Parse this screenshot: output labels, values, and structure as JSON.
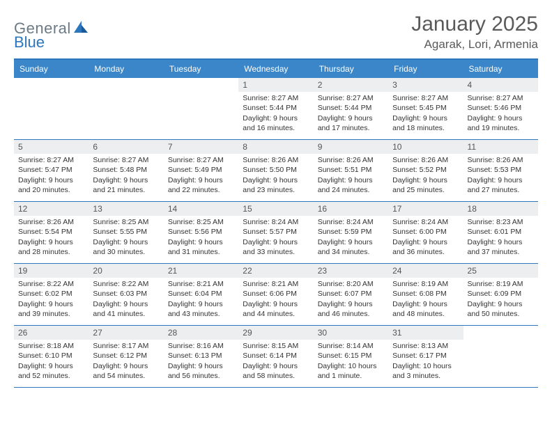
{
  "logo": {
    "word1": "General",
    "word2": "Blue"
  },
  "title": "January 2025",
  "location": "Agarak, Lori, Armenia",
  "colors": {
    "header_bg": "#3b86c8",
    "border": "#2b76bd",
    "daynum_bg": "#eceeef",
    "text": "#333333",
    "logo_gray": "#6b7a85",
    "logo_blue": "#2b76bd"
  },
  "weekdays": [
    "Sunday",
    "Monday",
    "Tuesday",
    "Wednesday",
    "Thursday",
    "Friday",
    "Saturday"
  ],
  "weeks": [
    [
      {
        "n": "",
        "sr": "",
        "ss": "",
        "dl1": "",
        "dl2": ""
      },
      {
        "n": "",
        "sr": "",
        "ss": "",
        "dl1": "",
        "dl2": ""
      },
      {
        "n": "",
        "sr": "",
        "ss": "",
        "dl1": "",
        "dl2": ""
      },
      {
        "n": "1",
        "sr": "Sunrise: 8:27 AM",
        "ss": "Sunset: 5:44 PM",
        "dl1": "Daylight: 9 hours",
        "dl2": "and 16 minutes."
      },
      {
        "n": "2",
        "sr": "Sunrise: 8:27 AM",
        "ss": "Sunset: 5:44 PM",
        "dl1": "Daylight: 9 hours",
        "dl2": "and 17 minutes."
      },
      {
        "n": "3",
        "sr": "Sunrise: 8:27 AM",
        "ss": "Sunset: 5:45 PM",
        "dl1": "Daylight: 9 hours",
        "dl2": "and 18 minutes."
      },
      {
        "n": "4",
        "sr": "Sunrise: 8:27 AM",
        "ss": "Sunset: 5:46 PM",
        "dl1": "Daylight: 9 hours",
        "dl2": "and 19 minutes."
      }
    ],
    [
      {
        "n": "5",
        "sr": "Sunrise: 8:27 AM",
        "ss": "Sunset: 5:47 PM",
        "dl1": "Daylight: 9 hours",
        "dl2": "and 20 minutes."
      },
      {
        "n": "6",
        "sr": "Sunrise: 8:27 AM",
        "ss": "Sunset: 5:48 PM",
        "dl1": "Daylight: 9 hours",
        "dl2": "and 21 minutes."
      },
      {
        "n": "7",
        "sr": "Sunrise: 8:27 AM",
        "ss": "Sunset: 5:49 PM",
        "dl1": "Daylight: 9 hours",
        "dl2": "and 22 minutes."
      },
      {
        "n": "8",
        "sr": "Sunrise: 8:26 AM",
        "ss": "Sunset: 5:50 PM",
        "dl1": "Daylight: 9 hours",
        "dl2": "and 23 minutes."
      },
      {
        "n": "9",
        "sr": "Sunrise: 8:26 AM",
        "ss": "Sunset: 5:51 PM",
        "dl1": "Daylight: 9 hours",
        "dl2": "and 24 minutes."
      },
      {
        "n": "10",
        "sr": "Sunrise: 8:26 AM",
        "ss": "Sunset: 5:52 PM",
        "dl1": "Daylight: 9 hours",
        "dl2": "and 25 minutes."
      },
      {
        "n": "11",
        "sr": "Sunrise: 8:26 AM",
        "ss": "Sunset: 5:53 PM",
        "dl1": "Daylight: 9 hours",
        "dl2": "and 27 minutes."
      }
    ],
    [
      {
        "n": "12",
        "sr": "Sunrise: 8:26 AM",
        "ss": "Sunset: 5:54 PM",
        "dl1": "Daylight: 9 hours",
        "dl2": "and 28 minutes."
      },
      {
        "n": "13",
        "sr": "Sunrise: 8:25 AM",
        "ss": "Sunset: 5:55 PM",
        "dl1": "Daylight: 9 hours",
        "dl2": "and 30 minutes."
      },
      {
        "n": "14",
        "sr": "Sunrise: 8:25 AM",
        "ss": "Sunset: 5:56 PM",
        "dl1": "Daylight: 9 hours",
        "dl2": "and 31 minutes."
      },
      {
        "n": "15",
        "sr": "Sunrise: 8:24 AM",
        "ss": "Sunset: 5:57 PM",
        "dl1": "Daylight: 9 hours",
        "dl2": "and 33 minutes."
      },
      {
        "n": "16",
        "sr": "Sunrise: 8:24 AM",
        "ss": "Sunset: 5:59 PM",
        "dl1": "Daylight: 9 hours",
        "dl2": "and 34 minutes."
      },
      {
        "n": "17",
        "sr": "Sunrise: 8:24 AM",
        "ss": "Sunset: 6:00 PM",
        "dl1": "Daylight: 9 hours",
        "dl2": "and 36 minutes."
      },
      {
        "n": "18",
        "sr": "Sunrise: 8:23 AM",
        "ss": "Sunset: 6:01 PM",
        "dl1": "Daylight: 9 hours",
        "dl2": "and 37 minutes."
      }
    ],
    [
      {
        "n": "19",
        "sr": "Sunrise: 8:22 AM",
        "ss": "Sunset: 6:02 PM",
        "dl1": "Daylight: 9 hours",
        "dl2": "and 39 minutes."
      },
      {
        "n": "20",
        "sr": "Sunrise: 8:22 AM",
        "ss": "Sunset: 6:03 PM",
        "dl1": "Daylight: 9 hours",
        "dl2": "and 41 minutes."
      },
      {
        "n": "21",
        "sr": "Sunrise: 8:21 AM",
        "ss": "Sunset: 6:04 PM",
        "dl1": "Daylight: 9 hours",
        "dl2": "and 43 minutes."
      },
      {
        "n": "22",
        "sr": "Sunrise: 8:21 AM",
        "ss": "Sunset: 6:06 PM",
        "dl1": "Daylight: 9 hours",
        "dl2": "and 44 minutes."
      },
      {
        "n": "23",
        "sr": "Sunrise: 8:20 AM",
        "ss": "Sunset: 6:07 PM",
        "dl1": "Daylight: 9 hours",
        "dl2": "and 46 minutes."
      },
      {
        "n": "24",
        "sr": "Sunrise: 8:19 AM",
        "ss": "Sunset: 6:08 PM",
        "dl1": "Daylight: 9 hours",
        "dl2": "and 48 minutes."
      },
      {
        "n": "25",
        "sr": "Sunrise: 8:19 AM",
        "ss": "Sunset: 6:09 PM",
        "dl1": "Daylight: 9 hours",
        "dl2": "and 50 minutes."
      }
    ],
    [
      {
        "n": "26",
        "sr": "Sunrise: 8:18 AM",
        "ss": "Sunset: 6:10 PM",
        "dl1": "Daylight: 9 hours",
        "dl2": "and 52 minutes."
      },
      {
        "n": "27",
        "sr": "Sunrise: 8:17 AM",
        "ss": "Sunset: 6:12 PM",
        "dl1": "Daylight: 9 hours",
        "dl2": "and 54 minutes."
      },
      {
        "n": "28",
        "sr": "Sunrise: 8:16 AM",
        "ss": "Sunset: 6:13 PM",
        "dl1": "Daylight: 9 hours",
        "dl2": "and 56 minutes."
      },
      {
        "n": "29",
        "sr": "Sunrise: 8:15 AM",
        "ss": "Sunset: 6:14 PM",
        "dl1": "Daylight: 9 hours",
        "dl2": "and 58 minutes."
      },
      {
        "n": "30",
        "sr": "Sunrise: 8:14 AM",
        "ss": "Sunset: 6:15 PM",
        "dl1": "Daylight: 10 hours",
        "dl2": "and 1 minute."
      },
      {
        "n": "31",
        "sr": "Sunrise: 8:13 AM",
        "ss": "Sunset: 6:17 PM",
        "dl1": "Daylight: 10 hours",
        "dl2": "and 3 minutes."
      },
      {
        "n": "",
        "sr": "",
        "ss": "",
        "dl1": "",
        "dl2": ""
      }
    ]
  ]
}
